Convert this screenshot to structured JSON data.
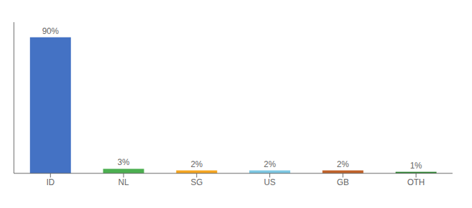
{
  "chart_data": {
    "type": "bar",
    "categories": [
      "ID",
      "NL",
      "SG",
      "US",
      "GB",
      "OTH"
    ],
    "values": [
      90,
      3,
      2,
      2,
      2,
      1
    ],
    "value_labels": [
      "90%",
      "3%",
      "2%",
      "2%",
      "2%",
      "1%"
    ],
    "data_labels": true,
    "colors": [
      "#4472c4",
      "#4caf50",
      "#f5a623",
      "#7ec8e3",
      "#c0622a",
      "#388e3c"
    ],
    "ylim": [
      0,
      100
    ],
    "grid": false,
    "tick_labels": "x"
  }
}
